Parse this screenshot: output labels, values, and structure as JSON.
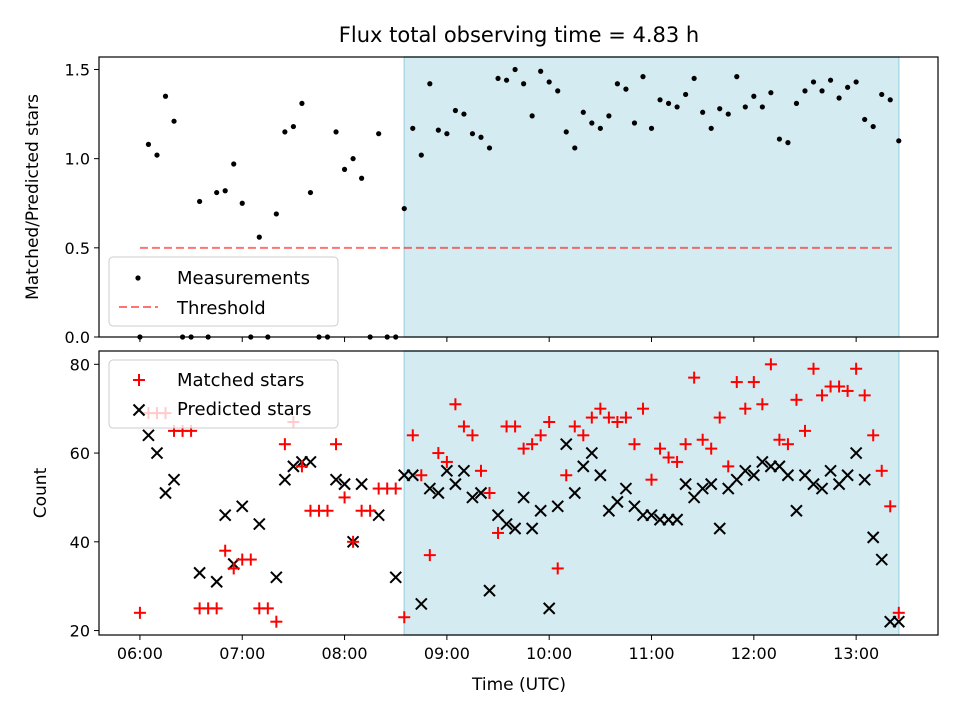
{
  "title": "Flux total observing time = 4.83 h",
  "colors": {
    "shade": "#add8e6",
    "threshold": "#ff0000",
    "matched": "#ff0000",
    "predicted": "#000000",
    "measurement": "#000000"
  },
  "chart_data": [
    {
      "type": "scatter",
      "ylabel": "Matched/Predicted stars",
      "xlim": [
        5.6,
        13.8
      ],
      "ylim": [
        0.0,
        1.57
      ],
      "yticks": [
        "0.0",
        "0.5",
        "1.0",
        "1.5"
      ],
      "shaded_interval": [
        "08:35",
        "13:25"
      ],
      "legend_position": "lower-left",
      "threshold": {
        "name": "Threshold",
        "value": 0.5,
        "x": [
          "06:00",
          "13:23"
        ]
      },
      "series": [
        {
          "name": "Measurements",
          "x": [
            "06:00",
            "06:05",
            "06:10",
            "06:15",
            "06:20",
            "06:25",
            "06:30",
            "06:35",
            "06:40",
            "06:45",
            "06:50",
            "06:55",
            "07:00",
            "07:05",
            "07:10",
            "07:15",
            "07:20",
            "07:25",
            "07:30",
            "07:35",
            "07:40",
            "07:45",
            "07:50",
            "07:55",
            "08:00",
            "08:05",
            "08:10",
            "08:15",
            "08:20",
            "08:25",
            "08:30",
            "08:35",
            "08:40",
            "08:45",
            "08:50",
            "08:55",
            "09:00",
            "09:05",
            "09:10",
            "09:15",
            "09:20",
            "09:25",
            "09:30",
            "09:35",
            "09:40",
            "09:45",
            "09:50",
            "09:55",
            "10:00",
            "10:05",
            "10:10",
            "10:15",
            "10:20",
            "10:25",
            "10:30",
            "10:35",
            "10:40",
            "10:45",
            "10:50",
            "10:55",
            "11:00",
            "11:05",
            "11:10",
            "11:15",
            "11:20",
            "11:25",
            "11:30",
            "11:35",
            "11:40",
            "11:45",
            "11:50",
            "11:55",
            "12:00",
            "12:05",
            "12:10",
            "12:15",
            "12:20",
            "12:25",
            "12:30",
            "12:35",
            "12:40",
            "12:45",
            "12:50",
            "12:55",
            "13:00",
            "13:05",
            "13:10",
            "13:15",
            "13:20",
            "13:25"
          ],
          "y": [
            0.0,
            1.08,
            1.02,
            1.35,
            1.21,
            0.0,
            0.0,
            0.76,
            0.0,
            0.81,
            0.82,
            0.97,
            0.75,
            0.0,
            0.56,
            0.0,
            0.69,
            1.15,
            1.18,
            1.31,
            0.81,
            0.0,
            0.0,
            1.15,
            0.94,
            1.0,
            0.89,
            0.0,
            1.14,
            0.0,
            0.0,
            0.72,
            1.17,
            1.02,
            1.42,
            1.16,
            1.14,
            1.27,
            1.25,
            1.14,
            1.12,
            1.06,
            1.45,
            1.44,
            1.5,
            1.42,
            1.24,
            1.49,
            1.43,
            1.38,
            1.15,
            1.06,
            1.26,
            1.2,
            1.17,
            1.24,
            1.42,
            1.39,
            1.2,
            1.46,
            1.17,
            1.33,
            1.31,
            1.29,
            1.36,
            1.45,
            1.26,
            1.17,
            1.28,
            1.25,
            1.46,
            1.29,
            1.35,
            1.29,
            1.37,
            1.11,
            1.09,
            1.31,
            1.38,
            1.43,
            1.38,
            1.44,
            1.34,
            1.4,
            1.43,
            1.22,
            1.18,
            1.36,
            1.33,
            1.1
          ]
        }
      ]
    },
    {
      "type": "scatter",
      "xlabel": "Time (UTC)",
      "ylabel": "Count",
      "xlim": [
        5.6,
        13.8
      ],
      "ylim": [
        19,
        83
      ],
      "yticks": [
        "20",
        "40",
        "60",
        "80"
      ],
      "xticks": [
        "06:00",
        "07:00",
        "08:00",
        "09:00",
        "10:00",
        "11:00",
        "12:00",
        "13:00"
      ],
      "shaded_interval": [
        "08:35",
        "13:25"
      ],
      "legend_position": "upper-left",
      "series": [
        {
          "name": "Matched stars",
          "marker": "+",
          "x": [
            "06:00",
            "06:05",
            "06:10",
            "06:15",
            "06:20",
            "06:25",
            "06:30",
            "06:35",
            "06:40",
            "06:45",
            "06:50",
            "06:55",
            "07:00",
            "07:05",
            "07:10",
            "07:15",
            "07:20",
            "07:25",
            "07:30",
            "07:35",
            "07:40",
            "07:45",
            "07:50",
            "07:55",
            "08:00",
            "08:05",
            "08:10",
            "08:15",
            "08:20",
            "08:25",
            "08:30",
            "08:35",
            "08:40",
            "08:45",
            "08:50",
            "08:55",
            "09:00",
            "09:05",
            "09:10",
            "09:15",
            "09:20",
            "09:25",
            "09:30",
            "09:35",
            "09:40",
            "09:45",
            "09:50",
            "09:55",
            "10:00",
            "10:05",
            "10:10",
            "10:15",
            "10:20",
            "10:25",
            "10:30",
            "10:35",
            "10:40",
            "10:45",
            "10:50",
            "10:55",
            "11:00",
            "11:05",
            "11:10",
            "11:15",
            "11:20",
            "11:25",
            "11:30",
            "11:35",
            "11:40",
            "11:45",
            "11:50",
            "11:55",
            "12:00",
            "12:05",
            "12:10",
            "12:15",
            "12:20",
            "12:25",
            "12:30",
            "12:35",
            "12:40",
            "12:45",
            "12:50",
            "12:55",
            "13:00",
            "13:05",
            "13:10",
            "13:15",
            "13:20",
            "13:25"
          ],
          "y": [
            24,
            69,
            69,
            69,
            65,
            65,
            65,
            25,
            25,
            25,
            38,
            34,
            36,
            36,
            25,
            25,
            22,
            62,
            67,
            57,
            47,
            47,
            47,
            62,
            50,
            40,
            47,
            47,
            52,
            52,
            52,
            23,
            64,
            55,
            37,
            60,
            58,
            71,
            66,
            64,
            56,
            51,
            42,
            66,
            66,
            61,
            62,
            64,
            67,
            34,
            55,
            66,
            64,
            68,
            70,
            68,
            67,
            68,
            62,
            70,
            54,
            61,
            59,
            58,
            62,
            77,
            63,
            61,
            68,
            57,
            76,
            70,
            76,
            71,
            80,
            63,
            62,
            72,
            65,
            79,
            73,
            75,
            75,
            74,
            79,
            73,
            64,
            56,
            48,
            24
          ]
        },
        {
          "name": "Predicted stars",
          "marker": "x",
          "x": [
            "06:05",
            "06:10",
            "06:15",
            "06:20",
            "06:35",
            "06:45",
            "06:50",
            "06:55",
            "07:00",
            "07:10",
            "07:20",
            "07:25",
            "07:30",
            "07:35",
            "07:40",
            "07:55",
            "08:00",
            "08:05",
            "08:10",
            "08:20",
            "08:30",
            "08:35",
            "08:40",
            "08:45",
            "08:50",
            "08:55",
            "09:00",
            "09:05",
            "09:10",
            "09:15",
            "09:20",
            "09:25",
            "09:30",
            "09:35",
            "09:40",
            "09:45",
            "09:50",
            "09:55",
            "10:00",
            "10:05",
            "10:10",
            "10:15",
            "10:20",
            "10:25",
            "10:30",
            "10:35",
            "10:40",
            "10:45",
            "10:50",
            "10:55",
            "11:00",
            "11:05",
            "11:10",
            "11:15",
            "11:20",
            "11:25",
            "11:30",
            "11:35",
            "11:40",
            "11:45",
            "11:50",
            "11:55",
            "12:00",
            "12:05",
            "12:10",
            "12:15",
            "12:20",
            "12:25",
            "12:30",
            "12:35",
            "12:40",
            "12:45",
            "12:50",
            "12:55",
            "13:00",
            "13:05",
            "13:10",
            "13:15",
            "13:20",
            "13:25"
          ],
          "y": [
            64,
            60,
            51,
            54,
            33,
            31,
            46,
            35,
            48,
            44,
            32,
            54,
            57,
            58,
            58,
            54,
            53,
            40,
            53,
            46,
            32,
            55,
            55,
            26,
            52,
            51,
            56,
            53,
            56,
            50,
            51,
            29,
            46,
            44,
            43,
            50,
            43,
            47,
            25,
            48,
            62,
            51,
            57,
            60,
            55,
            47,
            49,
            52,
            48,
            46,
            46,
            45,
            45,
            45,
            53,
            50,
            52,
            53,
            43,
            52,
            54,
            56,
            55,
            58,
            57,
            57,
            55,
            47,
            55,
            53,
            52,
            56,
            53,
            55,
            60,
            54,
            41,
            36,
            22,
            22
          ]
        }
      ]
    }
  ]
}
